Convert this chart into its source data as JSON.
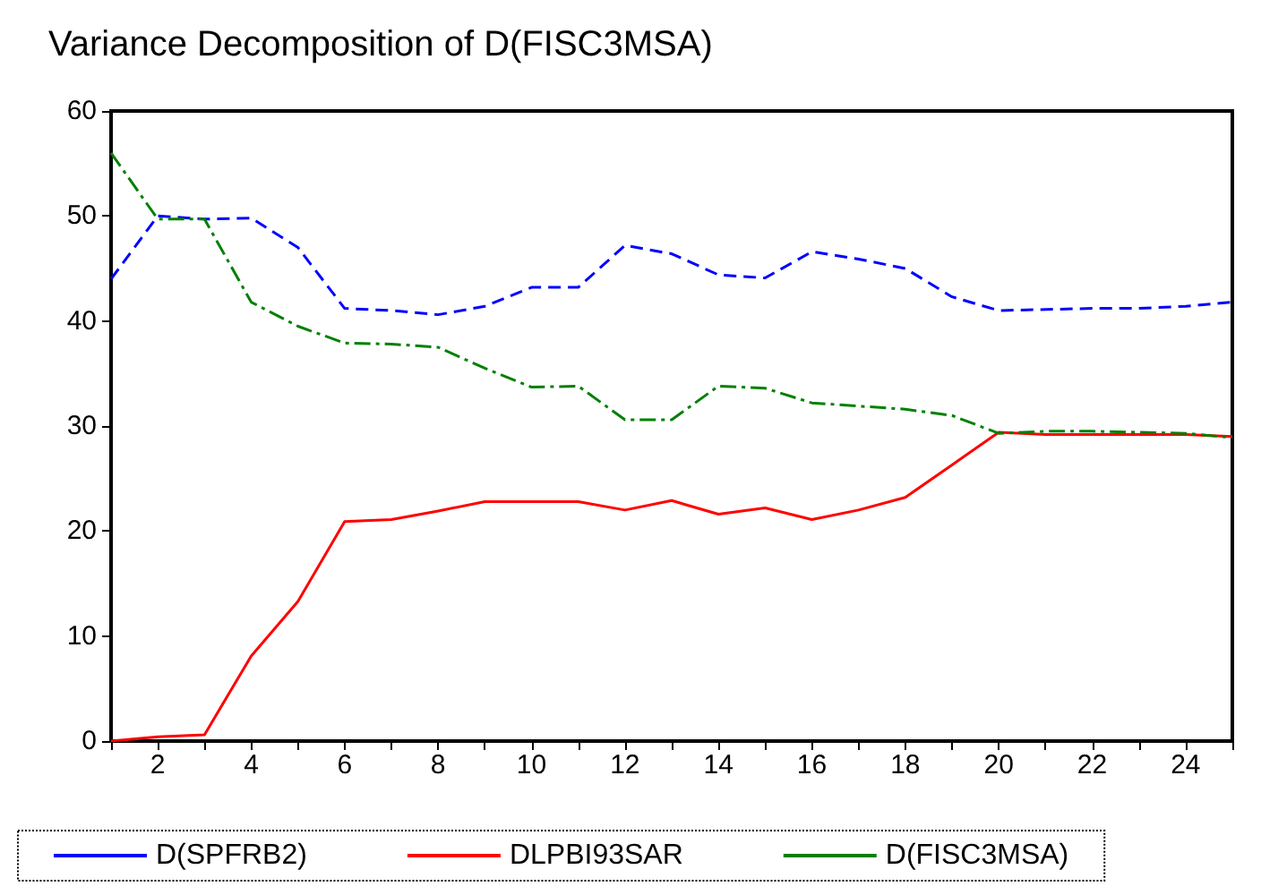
{
  "chart_data": {
    "type": "line",
    "title": "Variance Decomposition of D(FISC3MSA)",
    "x": [
      1,
      2,
      3,
      4,
      5,
      6,
      7,
      8,
      9,
      10,
      11,
      12,
      13,
      14,
      15,
      16,
      17,
      18,
      19,
      20,
      21,
      22,
      23,
      24,
      25
    ],
    "series": [
      {
        "name": "D(SPFRB2)",
        "color": "#0000ff",
        "line_style": "dashed",
        "values": [
          44,
          50,
          49.7,
          49.8,
          47,
          41.2,
          41,
          40.6,
          41.4,
          43.2,
          43.2,
          47.2,
          46.4,
          44.4,
          44.1,
          46.6,
          45.9,
          45,
          42.3,
          41,
          41.1,
          41.2,
          41.2,
          41.4,
          41.8
        ]
      },
      {
        "name": "DLPBI93SAR",
        "color": "#ff0000",
        "line_style": "solid",
        "values": [
          0,
          0.4,
          0.6,
          8.1,
          13.3,
          20.9,
          21.1,
          21.9,
          22.8,
          22.8,
          22.8,
          22,
          22.9,
          21.6,
          22.2,
          21.1,
          22,
          23.2,
          26.3,
          29.4,
          29.2,
          29.2,
          29.2,
          29.2,
          29
        ]
      },
      {
        "name": "D(FISC3MSA)",
        "color": "#008000",
        "line_style": "dashdot",
        "values": [
          56,
          49.7,
          49.7,
          41.8,
          39.5,
          37.9,
          37.8,
          37.5,
          35.5,
          33.7,
          33.8,
          30.6,
          30.6,
          33.8,
          33.6,
          32.2,
          31.9,
          31.6,
          31,
          29.3,
          29.5,
          29.5,
          29.4,
          29.3,
          28.9
        ]
      }
    ],
    "xlim": [
      1,
      25
    ],
    "xticks": [
      {
        "value": 1,
        "label": null
      },
      2,
      {
        "value": 3,
        "label": null
      },
      4,
      {
        "value": 5,
        "label": null
      },
      6,
      {
        "value": 7,
        "label": null
      },
      8,
      {
        "value": 9,
        "label": null
      },
      10,
      {
        "value": 11,
        "label": null
      },
      12,
      {
        "value": 13,
        "label": null
      },
      14,
      {
        "value": 15,
        "label": null
      },
      16,
      {
        "value": 17,
        "label": null
      },
      18,
      {
        "value": 19,
        "label": null
      },
      20,
      {
        "value": 21,
        "label": null
      },
      22,
      {
        "value": 23,
        "label": null
      },
      24,
      {
        "value": 25,
        "label": null
      }
    ],
    "ylim": [
      0,
      60
    ],
    "yticks": [
      0,
      10,
      20,
      30,
      40,
      50,
      60
    ],
    "grid": false,
    "legend": "bottom",
    "marker": "none"
  }
}
